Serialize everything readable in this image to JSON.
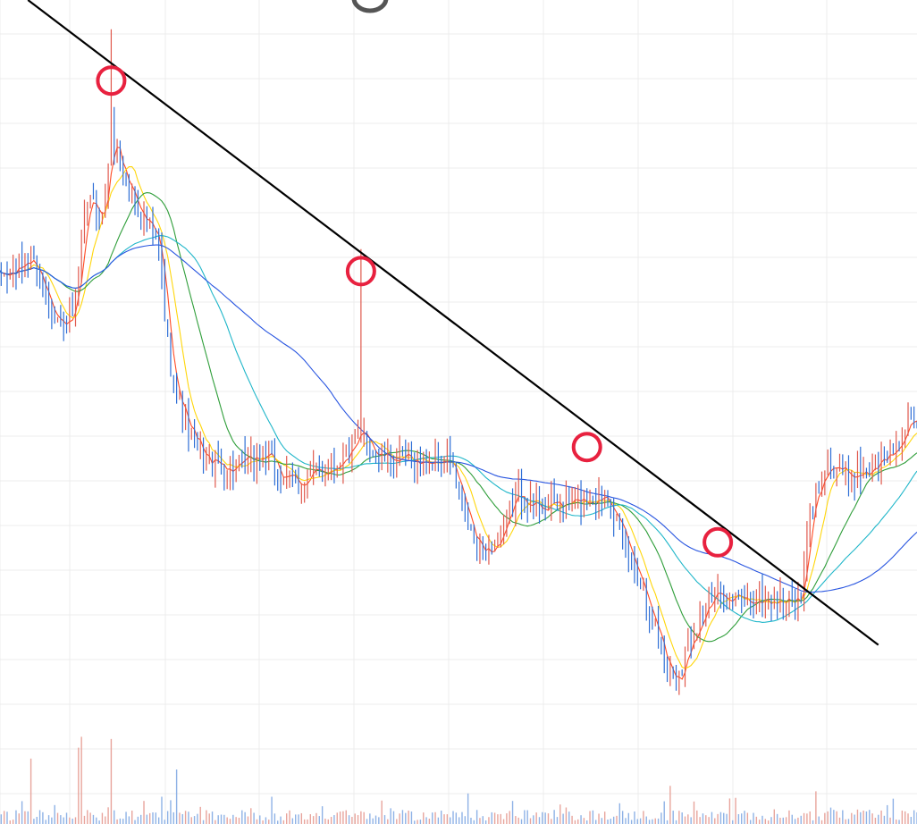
{
  "chart_data": {
    "type": "candlestick",
    "x_count": 310,
    "ylim": [
      0,
      100
    ],
    "volume_ylim": [
      0,
      100
    ],
    "grid": true,
    "colors": {
      "up": "#e05a4e",
      "down": "#2f6fd6",
      "volume_up": "#e8a49c",
      "volume_down": "#8eb2e6",
      "ma_fast": "#ff4a24",
      "ma_short": "#ffd60a",
      "ma_mid": "#2f9e3a",
      "ma_long": "#1fb6c9",
      "ma_slow": "#2855e0",
      "trendline": "#000000",
      "markers": "#e8213f"
    },
    "close_anchors": [
      {
        "x": 0,
        "y": 62
      },
      {
        "x": 6,
        "y": 63
      },
      {
        "x": 11,
        "y": 65
      },
      {
        "x": 16,
        "y": 60
      },
      {
        "x": 22,
        "y": 55
      },
      {
        "x": 26,
        "y": 58
      },
      {
        "x": 30,
        "y": 73
      },
      {
        "x": 35,
        "y": 70
      },
      {
        "x": 38,
        "y": 82
      },
      {
        "x": 42,
        "y": 76
      },
      {
        "x": 48,
        "y": 71
      },
      {
        "x": 54,
        "y": 66
      },
      {
        "x": 57,
        "y": 53
      },
      {
        "x": 60,
        "y": 46
      },
      {
        "x": 65,
        "y": 40
      },
      {
        "x": 70,
        "y": 37
      },
      {
        "x": 80,
        "y": 36
      },
      {
        "x": 90,
        "y": 38
      },
      {
        "x": 95,
        "y": 35
      },
      {
        "x": 100,
        "y": 34
      },
      {
        "x": 110,
        "y": 36
      },
      {
        "x": 118,
        "y": 38
      },
      {
        "x": 123,
        "y": 41
      },
      {
        "x": 127,
        "y": 38
      },
      {
        "x": 135,
        "y": 37
      },
      {
        "x": 145,
        "y": 37
      },
      {
        "x": 152,
        "y": 37
      },
      {
        "x": 156,
        "y": 31
      },
      {
        "x": 161,
        "y": 25
      },
      {
        "x": 165,
        "y": 25
      },
      {
        "x": 170,
        "y": 27
      },
      {
        "x": 174,
        "y": 33
      },
      {
        "x": 180,
        "y": 31
      },
      {
        "x": 190,
        "y": 31
      },
      {
        "x": 200,
        "y": 32
      },
      {
        "x": 205,
        "y": 33
      },
      {
        "x": 210,
        "y": 26
      },
      {
        "x": 215,
        "y": 22
      },
      {
        "x": 220,
        "y": 16
      },
      {
        "x": 224,
        "y": 10
      },
      {
        "x": 228,
        "y": 7
      },
      {
        "x": 232,
        "y": 12
      },
      {
        "x": 236,
        "y": 16
      },
      {
        "x": 242,
        "y": 19
      },
      {
        "x": 250,
        "y": 18
      },
      {
        "x": 258,
        "y": 18
      },
      {
        "x": 265,
        "y": 18
      },
      {
        "x": 270,
        "y": 18
      },
      {
        "x": 273,
        "y": 30
      },
      {
        "x": 278,
        "y": 37
      },
      {
        "x": 285,
        "y": 35
      },
      {
        "x": 293,
        "y": 36
      },
      {
        "x": 300,
        "y": 38
      },
      {
        "x": 306,
        "y": 42
      },
      {
        "x": 309,
        "y": 41
      }
    ],
    "spikes": [
      {
        "x": 38,
        "high": 96
      },
      {
        "x": 122,
        "high": 66
      }
    ],
    "volume_spikes": [
      {
        "x": 11,
        "v": 60
      },
      {
        "x": 27,
        "v": 70
      },
      {
        "x": 28,
        "v": 80
      },
      {
        "x": 38,
        "v": 78
      },
      {
        "x": 55,
        "v": 25
      },
      {
        "x": 60,
        "v": 50
      },
      {
        "x": 92,
        "v": 25
      },
      {
        "x": 158,
        "v": 28
      },
      {
        "x": 226,
        "v": 35
      },
      {
        "x": 275,
        "v": 30
      }
    ],
    "moving_averages": [
      {
        "key": "ma_fast",
        "period": 4
      },
      {
        "key": "ma_short",
        "period": 9
      },
      {
        "key": "ma_mid",
        "period": 22
      },
      {
        "key": "ma_long",
        "period": 40
      },
      {
        "key": "ma_slow",
        "period": 75
      }
    ],
    "trendline": {
      "from": {
        "x": 10,
        "y": 100
      },
      "to": {
        "x": 296,
        "y": 12
      }
    },
    "touch_points": [
      {
        "x": 38,
        "y": 89
      },
      {
        "x": 122,
        "y": 63
      },
      {
        "x": 198,
        "y": 39
      },
      {
        "x": 242,
        "y": 26
      }
    ]
  }
}
